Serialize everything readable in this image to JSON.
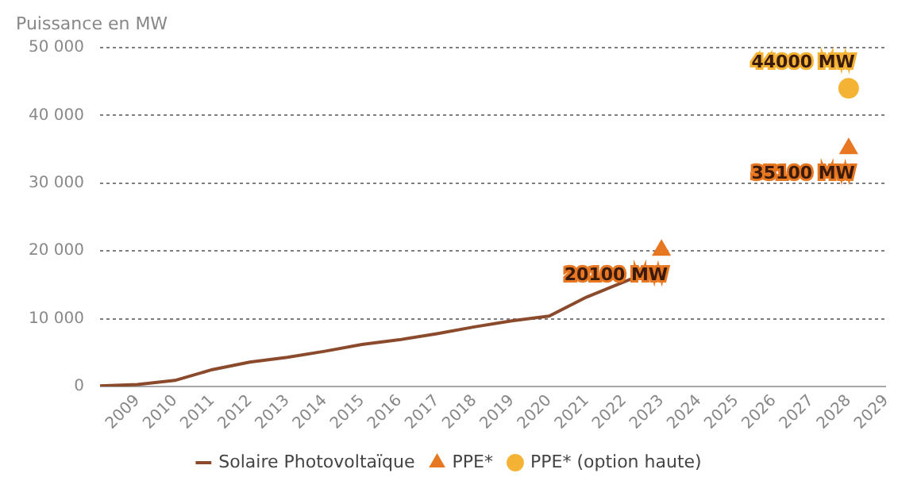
{
  "chart_data": {
    "type": "line",
    "ylabel": "Puissance en MW",
    "xlim": [
      2008,
      2029
    ],
    "xticks": [
      2009,
      2010,
      2011,
      2012,
      2013,
      2014,
      2015,
      2016,
      2017,
      2018,
      2019,
      2020,
      2021,
      2022,
      2023,
      2024,
      2025,
      2026,
      2027,
      2028,
      2029
    ],
    "ylim": [
      0,
      50000
    ],
    "yticks": [
      {
        "value": 0,
        "label": "0"
      },
      {
        "value": 10000,
        "label": "10 000"
      },
      {
        "value": 20000,
        "label": "20 000"
      },
      {
        "value": 30000,
        "label": "30 000"
      },
      {
        "value": 40000,
        "label": "40 000"
      },
      {
        "value": 50000,
        "label": "50 000"
      }
    ],
    "grid": "y",
    "legend": "bottom",
    "series": [
      {
        "name": "Solaire Photovoltaïque",
        "color": "#8b4a2b",
        "marker": "none",
        "x": [
          2008,
          2009,
          2010,
          2011,
          2012,
          2013,
          2014,
          2015,
          2016,
          2017,
          2018,
          2019,
          2020,
          2021,
          2022.25
        ],
        "values": [
          100,
          300,
          900,
          2500,
          3600,
          4300,
          5200,
          6200,
          6900,
          7800,
          8800,
          9700,
          10400,
          13200,
          16000
        ]
      },
      {
        "name": "PPE*",
        "type": "scatter",
        "color": "#e87722",
        "marker": "triangle",
        "x": [
          2023,
          2028
        ],
        "values": [
          20100,
          35100
        ],
        "value_labels": [
          "20100 MW",
          "35100 MW"
        ]
      },
      {
        "name": "PPE* (option haute)",
        "type": "scatter",
        "color": "#f5b335",
        "marker": "circle",
        "x": [
          2028
        ],
        "values": [
          44000
        ],
        "value_labels": [
          "44000 MW"
        ]
      }
    ]
  }
}
